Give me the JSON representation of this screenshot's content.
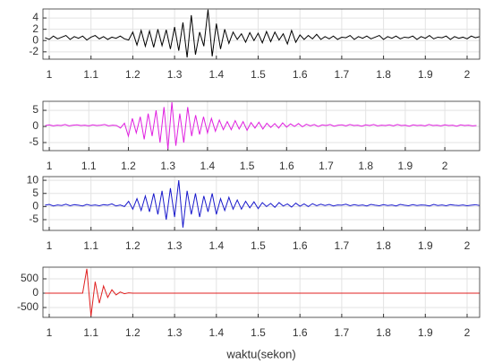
{
  "chart_data": [
    {
      "type": "line",
      "color": "#000000",
      "grid": true,
      "xlim": [
        0.985,
        2.03
      ],
      "ylim": [
        -3.3,
        5.6
      ],
      "xticks": [
        1,
        1.1,
        1.2,
        1.3,
        1.4,
        1.5,
        1.6,
        1.7,
        1.8,
        1.9,
        2
      ],
      "yticks": [
        -2,
        0,
        2,
        4
      ],
      "x": [
        0.99,
        1,
        1.01,
        1.02,
        1.03,
        1.04,
        1.05,
        1.06,
        1.07,
        1.08,
        1.09,
        1.1,
        1.11,
        1.12,
        1.13,
        1.14,
        1.15,
        1.16,
        1.17,
        1.18,
        1.19,
        1.2,
        1.21,
        1.22,
        1.23,
        1.24,
        1.25,
        1.26,
        1.27,
        1.28,
        1.29,
        1.3,
        1.31,
        1.32,
        1.33,
        1.34,
        1.35,
        1.36,
        1.37,
        1.38,
        1.39,
        1.4,
        1.41,
        1.42,
        1.43,
        1.44,
        1.45,
        1.46,
        1.47,
        1.48,
        1.49,
        1.5,
        1.51,
        1.52,
        1.53,
        1.54,
        1.55,
        1.56,
        1.57,
        1.58,
        1.59,
        1.6,
        1.61,
        1.62,
        1.63,
        1.64,
        1.65,
        1.66,
        1.67,
        1.68,
        1.69,
        1.7,
        1.71,
        1.72,
        1.73,
        1.74,
        1.75,
        1.76,
        1.77,
        1.78,
        1.79,
        1.8,
        1.81,
        1.82,
        1.83,
        1.84,
        1.85,
        1.86,
        1.87,
        1.88,
        1.89,
        1.9,
        1.91,
        1.92,
        1.93,
        1.94,
        1.95,
        1.96,
        1.97,
        1.98,
        1.99,
        2,
        2.01,
        2.02,
        2.03
      ],
      "values": [
        0.5,
        0.2,
        0.8,
        0.3,
        0.6,
        0.9,
        0.2,
        0.7,
        0.4,
        0.8,
        0.1,
        0.6,
        0.9,
        0.3,
        0.7,
        0.2,
        0.6,
        0.4,
        0.8,
        0.3,
        0.1,
        1.5,
        -0.8,
        1.8,
        -1,
        1.7,
        -1.2,
        2,
        -0.9,
        1.9,
        -1.5,
        2.4,
        -1.8,
        3.2,
        -3,
        4.5,
        -2.5,
        1.5,
        -1,
        5.5,
        -2.8,
        3,
        -1.5,
        2,
        -0.5,
        1.5,
        0.2,
        1.2,
        -0.3,
        1.4,
        0,
        1.3,
        -0.4,
        1.6,
        -0.2,
        1.5,
        0.1,
        1.2,
        -0.6,
        1.8,
        -0.3,
        1,
        0.2,
        0.9,
        0.3,
        1.1,
        0.2,
        0.7,
        0.3,
        0.8,
        0.2,
        0.6,
        0.5,
        0.9,
        0.2,
        0.7,
        0.4,
        0.8,
        0.3,
        0.6,
        0.9,
        0.2,
        0.7,
        0.4,
        0.8,
        0.3,
        0.6,
        0.5,
        0.8,
        0.2,
        0.7,
        0.4,
        0.9,
        0.3,
        0.6,
        0.5,
        0.8,
        0.2,
        0.7,
        0.4,
        0.6,
        0.3,
        0.8,
        0.5,
        0.7
      ]
    },
    {
      "type": "line",
      "color": "#e020e0",
      "grid": true,
      "xlim": [
        0.984,
        2.088
      ],
      "ylim": [
        -7.5,
        7.8
      ],
      "xticks": [
        1,
        1.1,
        1.2,
        1.3,
        1.4,
        1.5,
        1.6,
        1.7,
        1.8,
        1.9,
        2
      ],
      "yticks": [
        -5,
        0,
        5
      ],
      "x": [
        0.99,
        1,
        1.01,
        1.02,
        1.03,
        1.04,
        1.05,
        1.06,
        1.07,
        1.08,
        1.09,
        1.1,
        1.11,
        1.12,
        1.13,
        1.14,
        1.15,
        1.16,
        1.17,
        1.18,
        1.19,
        1.2,
        1.21,
        1.22,
        1.23,
        1.24,
        1.25,
        1.26,
        1.27,
        1.28,
        1.29,
        1.3,
        1.31,
        1.32,
        1.33,
        1.34,
        1.35,
        1.36,
        1.37,
        1.38,
        1.39,
        1.4,
        1.41,
        1.42,
        1.43,
        1.44,
        1.45,
        1.46,
        1.47,
        1.48,
        1.49,
        1.5,
        1.51,
        1.52,
        1.53,
        1.54,
        1.55,
        1.56,
        1.57,
        1.58,
        1.59,
        1.6,
        1.61,
        1.62,
        1.63,
        1.64,
        1.65,
        1.66,
        1.67,
        1.68,
        1.69,
        1.7,
        1.71,
        1.72,
        1.73,
        1.74,
        1.75,
        1.76,
        1.77,
        1.78,
        1.79,
        1.8,
        1.81,
        1.82,
        1.83,
        1.84,
        1.85,
        1.86,
        1.87,
        1.88,
        1.89,
        1.9,
        1.91,
        1.92,
        1.93,
        1.94,
        1.95,
        1.96,
        1.97,
        1.98,
        1.99,
        2,
        2.01,
        2.02,
        2.03,
        2.04,
        2.05,
        2.06,
        2.07,
        2.08
      ],
      "values": [
        0.3,
        0.5,
        0.2,
        0.4,
        0.3,
        0.6,
        0.2,
        0.4,
        0.5,
        0.3,
        0.4,
        0.2,
        0.5,
        0.3,
        0.4,
        0.6,
        0.2,
        0.4,
        0.3,
        -0.5,
        1,
        -3,
        2.5,
        -2,
        3,
        -4,
        4,
        -3,
        5,
        -5,
        6,
        -7,
        7.5,
        -6,
        4,
        -5,
        6,
        -3,
        3.5,
        -2.5,
        3,
        -2,
        2.5,
        -1.5,
        2,
        -1,
        1.5,
        -1,
        1.8,
        -0.8,
        1.5,
        -1.2,
        1.2,
        -0.5,
        1.3,
        -0.8,
        1,
        -0.3,
        0.9,
        -0.5,
        1.1,
        -0.2,
        0.8,
        0,
        0.9,
        -0.1,
        0.7,
        0.2,
        0.6,
        0,
        0.5,
        0.3,
        0.6,
        0.1,
        0.4,
        0.5,
        0.2,
        0.6,
        0.3,
        0.4,
        0.1,
        0.5,
        0.3,
        0.6,
        0.2,
        0.4,
        0.3,
        0.5,
        0.2,
        0.6,
        0.3,
        0.4,
        0.1,
        0.5,
        0.3,
        0.4,
        0.2,
        0.6,
        0.3,
        0.4,
        0.2,
        0.5,
        0.3,
        0.4,
        0.1,
        0.5,
        0.3,
        0.4,
        0.2,
        0.3
      ]
    },
    {
      "type": "line",
      "color": "#1a1acc",
      "grid": true,
      "xlim": [
        0.985,
        2.03
      ],
      "ylim": [
        -9.1,
        11.4
      ],
      "xticks": [
        1,
        1.1,
        1.2,
        1.3,
        1.4,
        1.5,
        1.6,
        1.7,
        1.8,
        1.9,
        2
      ],
      "yticks": [
        -5,
        0,
        5,
        10
      ],
      "x": [
        0.99,
        1,
        1.01,
        1.02,
        1.03,
        1.04,
        1.05,
        1.06,
        1.07,
        1.08,
        1.09,
        1.1,
        1.11,
        1.12,
        1.13,
        1.14,
        1.15,
        1.16,
        1.17,
        1.18,
        1.19,
        1.2,
        1.21,
        1.22,
        1.23,
        1.24,
        1.25,
        1.26,
        1.27,
        1.28,
        1.29,
        1.3,
        1.31,
        1.32,
        1.33,
        1.34,
        1.35,
        1.36,
        1.37,
        1.38,
        1.39,
        1.4,
        1.41,
        1.42,
        1.43,
        1.44,
        1.45,
        1.46,
        1.47,
        1.48,
        1.49,
        1.5,
        1.51,
        1.52,
        1.53,
        1.54,
        1.55,
        1.56,
        1.57,
        1.58,
        1.59,
        1.6,
        1.61,
        1.62,
        1.63,
        1.64,
        1.65,
        1.66,
        1.67,
        1.68,
        1.69,
        1.7,
        1.71,
        1.72,
        1.73,
        1.74,
        1.75,
        1.76,
        1.77,
        1.78,
        1.79,
        1.8,
        1.81,
        1.82,
        1.83,
        1.84,
        1.85,
        1.86,
        1.87,
        1.88,
        1.89,
        1.9,
        1.91,
        1.92,
        1.93,
        1.94,
        1.95,
        1.96,
        1.97,
        1.98,
        1.99,
        2,
        2.01,
        2.02,
        2.03
      ],
      "values": [
        0.5,
        0.8,
        0.2,
        0.6,
        0.4,
        0.9,
        0.3,
        0.7,
        0.5,
        0.2,
        0.8,
        0.4,
        0.6,
        0.3,
        0.7,
        0.5,
        1,
        0.2,
        0.6,
        0,
        2,
        -1,
        3,
        -1.5,
        4,
        -2,
        5,
        -3,
        6,
        -5,
        7,
        -4,
        10,
        -8,
        6,
        -3,
        5,
        -4,
        4,
        -2,
        5,
        -3,
        3,
        -1.5,
        3.5,
        -1,
        2.5,
        -1,
        2,
        -0.5,
        1.8,
        -0.8,
        1.5,
        0,
        1.2,
        -0.3,
        1.5,
        0.2,
        1,
        -0.2,
        1.3,
        0.1,
        1,
        0,
        1.1,
        0.3,
        0.9,
        0.4,
        0.8,
        0.2,
        0.6,
        0.5,
        0.9,
        0.3,
        0.7,
        0.4,
        0.6,
        0.2,
        0.8,
        0.5,
        0.3,
        0.7,
        0.4,
        0.6,
        0.2,
        0.8,
        0.5,
        0.3,
        0.7,
        0.4,
        0.6,
        0.5,
        0.2,
        0.8,
        0.4,
        0.6,
        0.3,
        0.7,
        0.5,
        0.4,
        0.6,
        0.3,
        0.5,
        0.7,
        0.4
      ]
    },
    {
      "type": "line",
      "color": "#e02020",
      "grid": true,
      "xlim": [
        0.985,
        2.03
      ],
      "ylim": [
        -844,
        906
      ],
      "xticks": [
        1,
        1.1,
        1.2,
        1.3,
        1.4,
        1.5,
        1.6,
        1.7,
        1.8,
        1.9,
        2
      ],
      "yticks": [
        -500,
        0,
        500
      ],
      "x_label": "waktu(sekon)",
      "x": [
        0.99,
        1,
        1.01,
        1.02,
        1.03,
        1.04,
        1.05,
        1.06,
        1.07,
        1.08,
        1.09,
        1.1,
        1.11,
        1.12,
        1.13,
        1.14,
        1.15,
        1.16,
        1.17,
        1.18,
        1.19,
        1.2,
        1.21,
        1.22,
        1.23,
        1.24,
        1.25,
        1.26,
        1.27,
        1.28,
        1.29,
        1.3,
        1.31,
        1.32,
        1.33,
        1.34,
        1.35,
        1.36,
        1.37,
        1.38,
        1.39,
        1.4,
        1.41,
        1.42,
        1.43,
        1.44,
        1.45,
        1.46,
        1.47,
        1.48,
        1.49,
        1.5,
        1.51,
        1.52,
        1.53,
        1.54,
        1.55,
        1.56,
        1.57,
        1.58,
        1.59,
        1.6,
        1.61,
        1.62,
        1.63,
        1.64,
        1.65,
        1.66,
        1.67,
        1.68,
        1.69,
        1.7,
        1.71,
        1.72,
        1.73,
        1.74,
        1.75,
        1.76,
        1.77,
        1.78,
        1.79,
        1.8,
        1.81,
        1.82,
        1.83,
        1.84,
        1.85,
        1.86,
        1.87,
        1.88,
        1.89,
        1.9,
        1.91,
        1.92,
        1.93,
        1.94,
        1.95,
        1.96,
        1.97,
        1.98,
        1.99,
        2,
        2.01,
        2.02,
        2.03
      ],
      "values": [
        0,
        0,
        0,
        0,
        0,
        0,
        0,
        0,
        0,
        0,
        850,
        -800,
        400,
        -350,
        250,
        -150,
        120,
        -60,
        40,
        -20,
        10,
        0,
        0,
        0,
        0,
        0,
        0,
        0,
        0,
        0,
        0,
        0,
        0,
        0,
        0,
        0,
        0,
        0,
        0,
        0,
        0,
        0,
        0,
        0,
        0,
        0,
        0,
        0,
        0,
        0,
        0,
        0,
        0,
        0,
        0,
        0,
        0,
        0,
        0,
        0,
        0,
        0,
        0,
        0,
        0,
        0,
        0,
        0,
        0,
        0,
        0,
        0,
        0,
        0,
        0,
        0,
        0,
        0,
        0,
        0,
        0,
        0,
        0,
        0,
        0,
        0,
        0,
        0,
        0,
        0,
        0,
        0,
        0,
        0,
        0,
        0,
        0,
        0,
        0,
        0,
        0,
        0,
        0,
        0,
        0
      ]
    }
  ]
}
